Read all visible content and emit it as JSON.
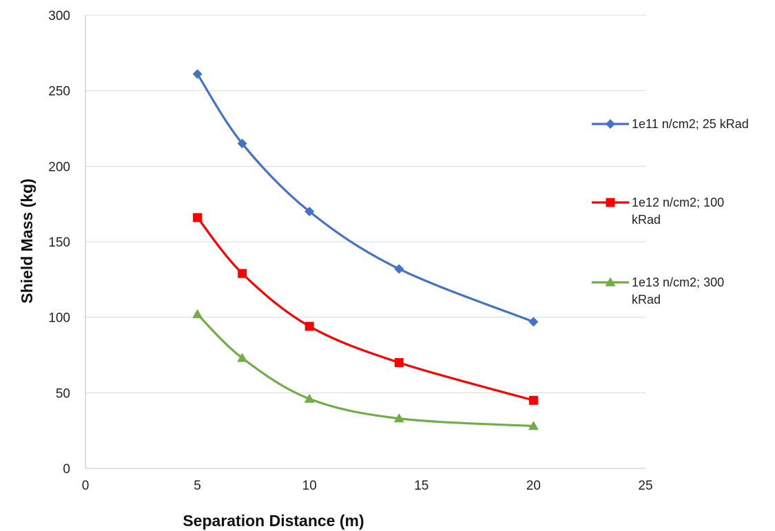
{
  "chart_data": {
    "type": "scatter",
    "title": "",
    "xlabel": "Separation Distance (m)",
    "ylabel": "Shield Mass (kg)",
    "xlim": [
      0,
      25
    ],
    "ylim": [
      0,
      300
    ],
    "x_ticks": [
      "0",
      "5",
      "10",
      "15",
      "20",
      "25"
    ],
    "y_ticks": [
      "0",
      "50",
      "100",
      "150",
      "200",
      "250",
      "300"
    ],
    "grid": "horizontal",
    "legend_position": "right",
    "smoothed_lines": true,
    "series": [
      {
        "name": "1e11 n/cm2; 25 kRad",
        "legend_lines": [
          "1e11 n/cm2; 25 kRad"
        ],
        "color": "#4472C4",
        "marker": "diamond",
        "x": [
          5,
          7,
          10,
          14,
          20
        ],
        "y": [
          261,
          215,
          170,
          132,
          97
        ]
      },
      {
        "name": "1e12 n/cm2; 100 kRad",
        "legend_lines": [
          "1e12 n/cm2; 100",
          "kRad"
        ],
        "color": "#FF0000",
        "marker": "square",
        "x": [
          5,
          7,
          10,
          14,
          20
        ],
        "y": [
          166,
          129,
          94,
          70,
          45
        ]
      },
      {
        "name": "1e13 n/cm2; 300 kRad",
        "legend_lines": [
          "1e13 n/cm2; 300",
          "kRad"
        ],
        "color": "#70AD47",
        "marker": "triangle",
        "x": [
          5,
          7,
          10,
          14,
          20
        ],
        "y": [
          102,
          73,
          46,
          33,
          28
        ]
      }
    ]
  }
}
